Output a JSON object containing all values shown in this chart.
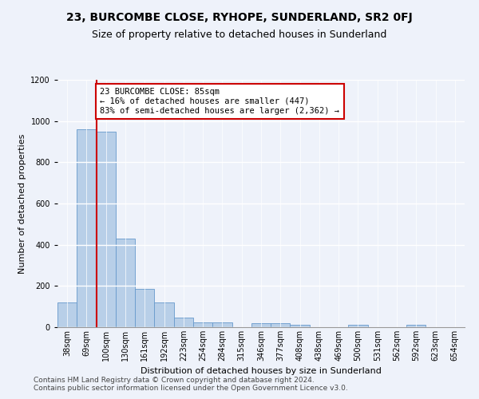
{
  "title": "23, BURCOMBE CLOSE, RYHOPE, SUNDERLAND, SR2 0FJ",
  "subtitle": "Size of property relative to detached houses in Sunderland",
  "xlabel": "Distribution of detached houses by size in Sunderland",
  "ylabel": "Number of detached properties",
  "categories": [
    "38sqm",
    "69sqm",
    "100sqm",
    "130sqm",
    "161sqm",
    "192sqm",
    "223sqm",
    "254sqm",
    "284sqm",
    "315sqm",
    "346sqm",
    "377sqm",
    "408sqm",
    "438sqm",
    "469sqm",
    "500sqm",
    "531sqm",
    "562sqm",
    "592sqm",
    "623sqm",
    "654sqm"
  ],
  "values": [
    120,
    960,
    950,
    430,
    185,
    120,
    45,
    22,
    22,
    0,
    18,
    18,
    10,
    0,
    0,
    10,
    0,
    0,
    10,
    0,
    0
  ],
  "bar_color": "#b8cfe8",
  "bar_edge_color": "#6699cc",
  "ylim": [
    0,
    1200
  ],
  "yticks": [
    0,
    200,
    400,
    600,
    800,
    1000,
    1200
  ],
  "property_line_x": 1.5,
  "annotation_text": "23 BURCOMBE CLOSE: 85sqm\n← 16% of detached houses are smaller (447)\n83% of semi-detached houses are larger (2,362) →",
  "annotation_box_color": "#ffffff",
  "annotation_box_edge_color": "#cc0000",
  "vline_color": "#cc0000",
  "footer1": "Contains HM Land Registry data © Crown copyright and database right 2024.",
  "footer2": "Contains public sector information licensed under the Open Government Licence v3.0.",
  "background_color": "#eef2fa",
  "grid_color": "#ffffff",
  "title_fontsize": 10,
  "subtitle_fontsize": 9,
  "label_fontsize": 8,
  "tick_fontsize": 7,
  "annotation_fontsize": 7.5,
  "footer_fontsize": 6.5
}
